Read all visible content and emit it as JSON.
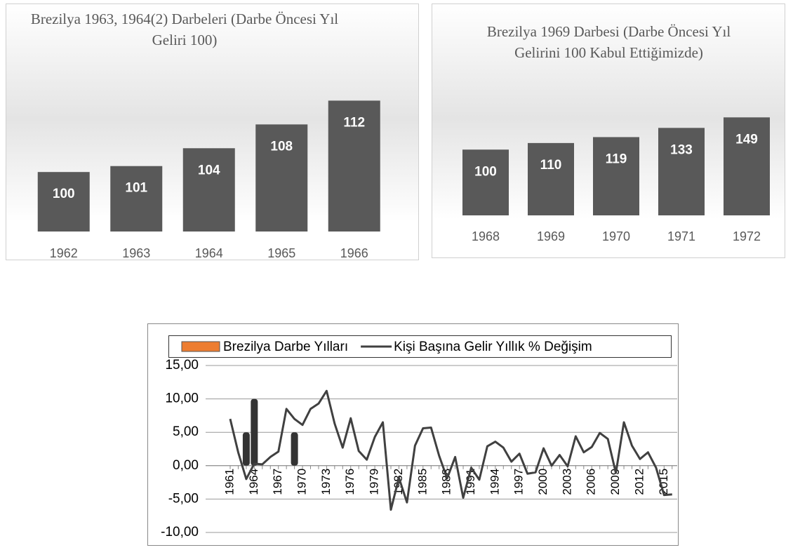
{
  "chart_data": [
    {
      "type": "bar",
      "title": "Brezilya 1963, 1964(2) Darbeleri (Darbe Öncesi Yıl Geliri 100)",
      "categories": [
        1962,
        1963,
        1964,
        1965,
        1966
      ],
      "values": [
        100,
        101,
        104,
        108,
        112
      ],
      "color": "#595959",
      "ylim": [
        90,
        115
      ]
    },
    {
      "type": "bar",
      "title": "Brezilya 1969 Darbesi (Darbe Öncesi Yıl Gelirini 100 Kabul Ettiğimizde)",
      "categories": [
        1968,
        1969,
        1970,
        1971,
        1972
      ],
      "values": [
        100,
        110,
        119,
        133,
        149
      ],
      "color": "#595959",
      "ylim": [
        0,
        160
      ]
    },
    {
      "type": "combo",
      "categories": [
        1961,
        null,
        null,
        1964,
        null,
        null,
        1967,
        null,
        null,
        1970,
        null,
        null,
        1973,
        null,
        null,
        1976,
        null,
        null,
        1979,
        null,
        null,
        1982,
        null,
        null,
        1985,
        null,
        null,
        1988,
        null,
        null,
        1991,
        null,
        null,
        1994,
        null,
        null,
        1997,
        null,
        null,
        2000,
        null,
        null,
        2003,
        null,
        null,
        2006,
        null,
        null,
        2009,
        null,
        null,
        2012,
        null,
        null,
        2015,
        null
      ],
      "series": [
        {
          "name": "Brezilya Darbe Yılları",
          "type": "bar",
          "color": "#333333",
          "legend_color": "#ed7d31",
          "values": [
            null,
            null,
            5,
            10,
            null,
            null,
            null,
            null,
            5,
            null,
            null,
            null,
            null,
            null,
            null,
            null,
            null,
            null,
            null,
            null,
            null,
            null,
            null,
            null,
            null,
            null,
            null,
            null,
            null,
            null,
            null,
            null,
            null,
            null,
            null,
            null,
            null,
            null,
            null,
            null,
            null,
            null,
            null,
            null,
            null,
            null,
            null,
            null,
            null,
            null,
            null,
            null,
            null,
            null,
            null,
            null
          ]
        },
        {
          "name": "Kişi Başına Gelir Yıllık % Değişim",
          "type": "line",
          "color": "#404040",
          "values": [
            7.0,
            2.0,
            -2.0,
            0.3,
            0.2,
            1.3,
            2.1,
            8.5,
            7.0,
            6.1,
            8.5,
            9.3,
            11.2,
            6.3,
            2.7,
            7.1,
            2.2,
            0.9,
            4.3,
            6.5,
            -6.6,
            -1.8,
            -5.5,
            3.0,
            5.6,
            5.7,
            1.5,
            -1.9,
            1.3,
            -4.8,
            -0.3,
            -2.1,
            2.9,
            3.6,
            2.7,
            0.6,
            1.8,
            -1.2,
            -1.0,
            2.6,
            0.0,
            1.6,
            -0.1,
            4.4,
            2.0,
            2.8,
            4.9,
            4.0,
            -1.1,
            6.5,
            3.0,
            1.0,
            2.0,
            -0.3,
            -4.4,
            -4.3
          ]
        }
      ],
      "ylim": [
        -10,
        15
      ],
      "yticks": [
        {
          "value": -10,
          "label": "-10,00"
        },
        {
          "value": -5,
          "label": "-5,00"
        },
        {
          "value": 0,
          "label": "0,00"
        },
        {
          "value": 5,
          "label": "5,00"
        },
        {
          "value": 10,
          "label": "10,00"
        },
        {
          "value": 15,
          "label": "15,00"
        }
      ],
      "grid": true,
      "legend": "top"
    }
  ]
}
